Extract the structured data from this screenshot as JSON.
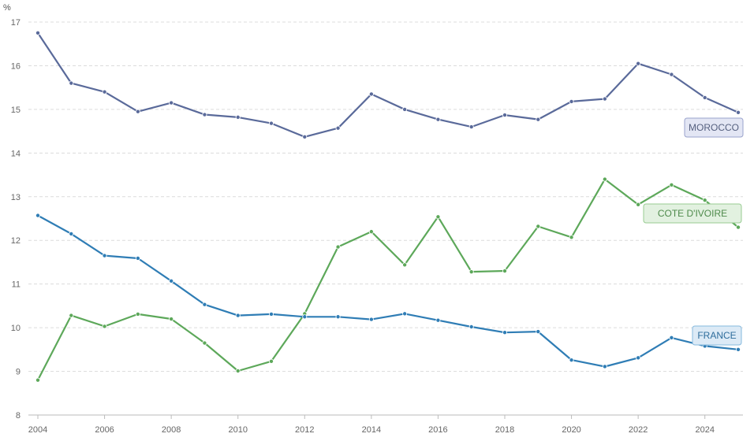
{
  "chart_data": {
    "type": "line",
    "ylabel": "%",
    "ylim": [
      8,
      17
    ],
    "yticks": [
      8,
      9,
      10,
      11,
      12,
      13,
      14,
      15,
      16,
      17
    ],
    "xlim": [
      2004,
      2025
    ],
    "xticks": [
      2004,
      2006,
      2008,
      2010,
      2012,
      2014,
      2016,
      2018,
      2020,
      2022,
      2024
    ],
    "grid": true,
    "legend": "inline labels at right end of each series",
    "x": [
      2004,
      2005,
      2006,
      2007,
      2008,
      2009,
      2010,
      2011,
      2012,
      2013,
      2014,
      2015,
      2016,
      2017,
      2018,
      2019,
      2020,
      2021,
      2022,
      2023,
      2024,
      2025
    ],
    "series": [
      {
        "name": "MOROCCO",
        "color": "#5a6a9a",
        "label_bg": "#e3e6f4",
        "label_border": "#9aa3cc",
        "label_color": "#55607f",
        "values": [
          16.75,
          15.6,
          15.4,
          14.95,
          15.15,
          14.88,
          14.82,
          14.68,
          14.37,
          14.57,
          15.35,
          15.0,
          14.77,
          14.6,
          14.87,
          14.77,
          15.18,
          15.24,
          16.05,
          15.8,
          15.27,
          14.93
        ]
      },
      {
        "name": "COTE D'IVOIRE",
        "color": "#5da85a",
        "label_bg": "#e2f1e0",
        "label_border": "#98cc92",
        "label_color": "#4e8a4b",
        "values": [
          8.8,
          10.28,
          10.03,
          10.31,
          10.2,
          9.65,
          9.01,
          9.23,
          10.32,
          11.85,
          12.2,
          11.44,
          12.54,
          11.28,
          11.3,
          12.32,
          12.07,
          13.4,
          12.82,
          13.27,
          12.92,
          12.3
        ]
      },
      {
        "name": "FRANCE",
        "color": "#2f7db5",
        "label_bg": "#dceaf6",
        "label_border": "#86b9de",
        "label_color": "#2e6d9c",
        "values": [
          12.57,
          12.15,
          11.65,
          11.59,
          11.07,
          10.53,
          10.28,
          10.31,
          10.25,
          10.25,
          10.19,
          10.32,
          10.17,
          10.02,
          9.89,
          9.91,
          9.26,
          9.11,
          9.31,
          9.77,
          9.58,
          9.5
        ]
      }
    ]
  }
}
